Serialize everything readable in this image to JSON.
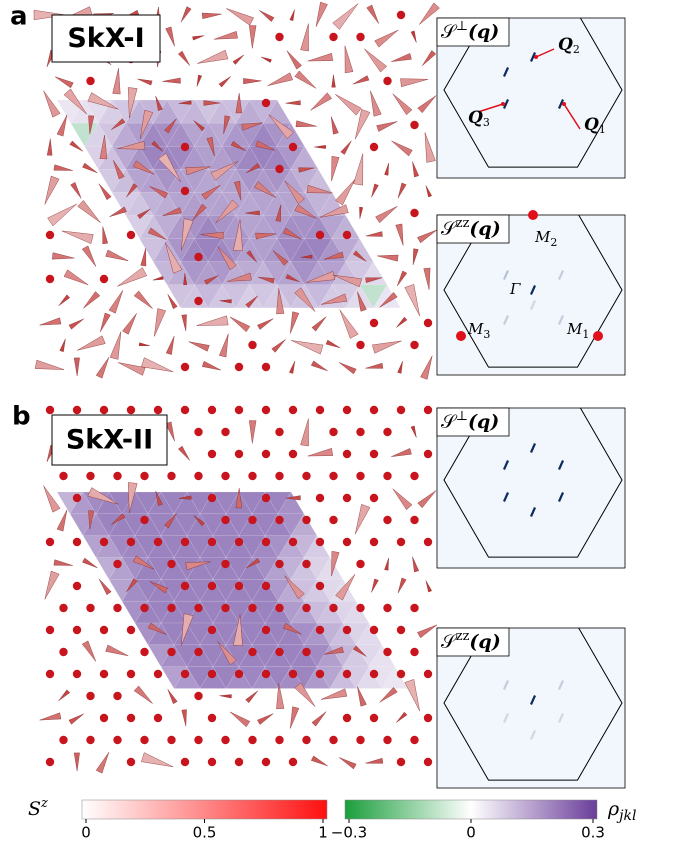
{
  "panels": [
    {
      "letter": "a",
      "title": "SkX-I",
      "insets": [
        {
          "symbol": "𝒮",
          "sup": "⊥",
          "arg": "(q)",
          "labels": [
            {
              "main": "Q",
              "sub": "2"
            },
            {
              "main": "Q",
              "sub": "3"
            },
            {
              "main": "Q",
              "sub": "1"
            }
          ]
        },
        {
          "symbol": "𝒮",
          "sup": "zz",
          "arg": "(q)",
          "labels": [
            {
              "main": "M",
              "sub": "2"
            },
            {
              "main": "Γ"
            },
            {
              "main": "M",
              "sub": "3"
            },
            {
              "main": "M",
              "sub": "1"
            }
          ]
        }
      ]
    },
    {
      "letter": "b",
      "title": "SkX-II",
      "insets": [
        {
          "symbol": "𝒮",
          "sup": "⊥",
          "arg": "(q)"
        },
        {
          "symbol": "𝒮",
          "sup": "zz",
          "arg": "(q)"
        }
      ]
    }
  ],
  "colorbars": [
    {
      "symbol": "S",
      "sup": "z",
      "ticks": [
        "0",
        "0.5",
        "1"
      ]
    },
    {
      "symbol": "ρ",
      "sub": "jkl",
      "ticks": [
        "−0.3",
        "0",
        "0.3"
      ]
    }
  ]
}
